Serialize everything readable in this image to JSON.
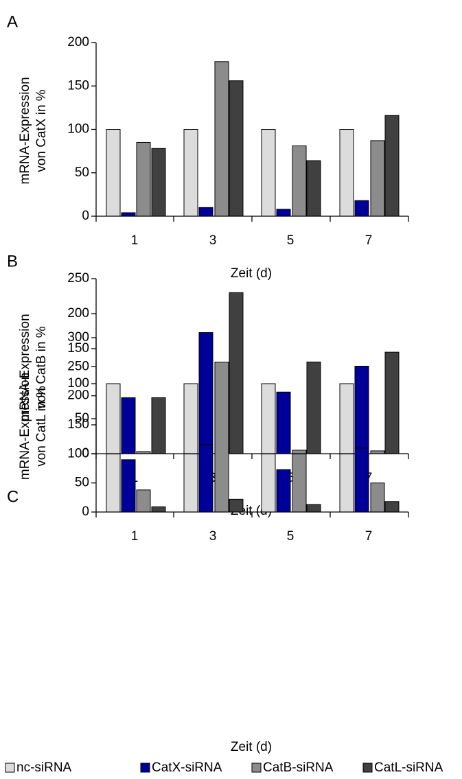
{
  "chart_data": [
    {
      "type": "bar",
      "panel_label": "A",
      "xlabel": "Zeit (d)",
      "ylabel": "mRNA-Expression von CatX in %",
      "ylim": [
        0,
        200
      ],
      "yticks": [
        0,
        50,
        100,
        150,
        200
      ],
      "categories": [
        "1",
        "3",
        "5",
        "7"
      ],
      "series": [
        {
          "name": "nc-siRNA",
          "values": [
            100,
            100,
            100,
            100
          ]
        },
        {
          "name": "CatX-siRNA",
          "values": [
            4,
            10,
            8,
            18
          ]
        },
        {
          "name": "CatB-siRNA",
          "values": [
            85,
            178,
            81,
            87
          ]
        },
        {
          "name": "CatL-siRNA",
          "values": [
            78,
            156,
            64,
            116
          ]
        }
      ]
    },
    {
      "type": "bar",
      "panel_label": "B",
      "xlabel": "Zeit (d)",
      "ylabel": "mRNA-Expression von CatB in %",
      "ylim": [
        0,
        250
      ],
      "yticks": [
        0,
        50,
        100,
        150,
        200,
        250
      ],
      "categories": [
        "1",
        "3",
        "5",
        "7"
      ],
      "series": [
        {
          "name": "nc-siRNA",
          "values": [
            100,
            100,
            100,
            100
          ]
        },
        {
          "name": "CatX-siRNA",
          "values": [
            80,
            173,
            88,
            125
          ]
        },
        {
          "name": "CatB-siRNA",
          "values": [
            3,
            10,
            5,
            4
          ]
        },
        {
          "name": "CatL-siRNA",
          "values": [
            80,
            230,
            131,
            145
          ]
        }
      ]
    },
    {
      "type": "bar",
      "panel_label": "C",
      "xlabel": "Zeit (d)",
      "ylabel": "mRNA-Expression von CatL in %",
      "ylim": [
        0,
        300
      ],
      "yticks": [
        0,
        50,
        100,
        150,
        200,
        250,
        300
      ],
      "categories": [
        "1",
        "3",
        "5",
        "7"
      ],
      "series": [
        {
          "name": "nc-siRNA",
          "values": [
            100,
            100,
            100,
            100
          ]
        },
        {
          "name": "CatX-siRNA",
          "values": [
            90,
            116,
            73,
            110
          ]
        },
        {
          "name": "CatB-siRNA",
          "values": [
            38,
            258,
            100,
            50
          ]
        },
        {
          "name": "CatL-siRNA",
          "values": [
            9,
            22,
            13,
            18
          ]
        }
      ]
    }
  ],
  "legend": [
    {
      "name": "nc-siRNA",
      "color": "#dcdcdc"
    },
    {
      "name": "CatX-siRNA",
      "color": "#000099"
    },
    {
      "name": "CatB-siRNA",
      "color": "#8c8c8c"
    },
    {
      "name": "CatL-siRNA",
      "color": "#404040"
    }
  ],
  "colors": {
    "nc-siRNA": "#dcdcdc",
    "CatX-siRNA": "#000099",
    "CatB-siRNA": "#8c8c8c",
    "CatL-siRNA": "#404040"
  }
}
